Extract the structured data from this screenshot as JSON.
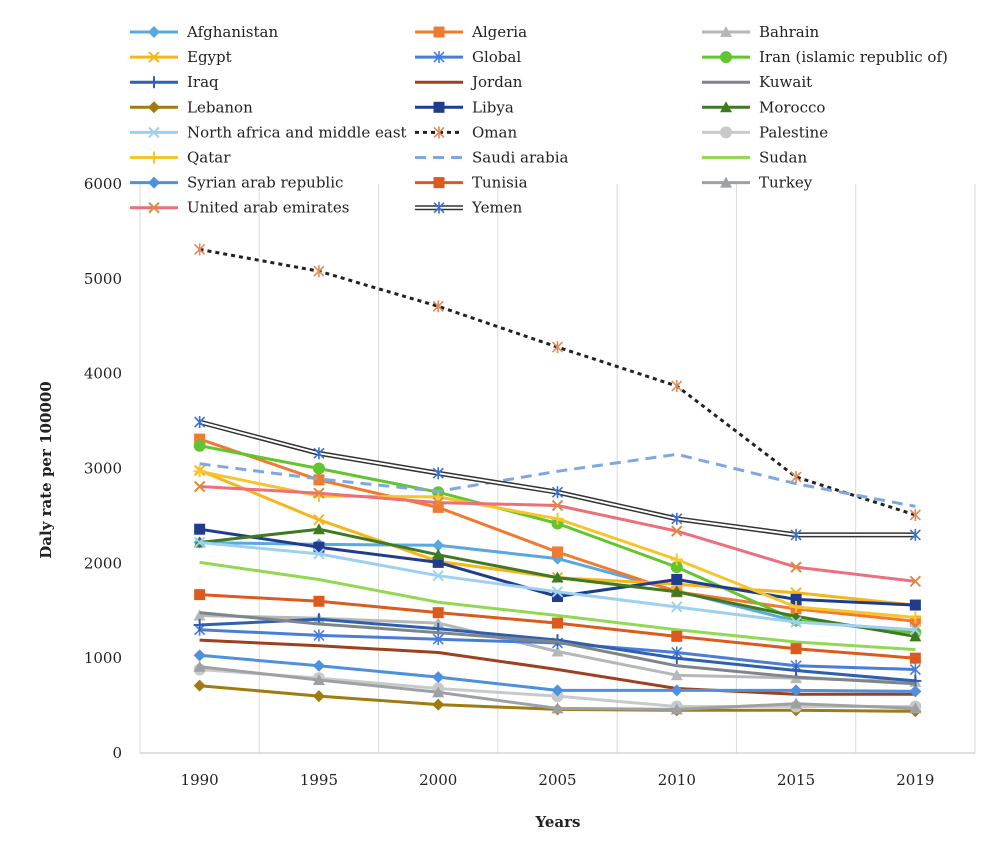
{
  "chart_data": {
    "type": "line",
    "xlabel": "Years",
    "ylabel": "Daly rate per 100000",
    "x": [
      "1990",
      "1995",
      "2000",
      "2005",
      "2010",
      "2015",
      "2019"
    ],
    "ylim": [
      0,
      6000
    ],
    "yticks": [
      0,
      1000,
      2000,
      3000,
      4000,
      5000,
      6000
    ],
    "grid": "vertical",
    "legend_position": "top",
    "series": [
      {
        "name": "Afghanistan",
        "color": "#5aa8e0",
        "marker": "diamond",
        "dash": "solid",
        "values": [
          2220,
          2200,
          2190,
          2050,
          1710,
          1390,
          1290
        ]
      },
      {
        "name": "Algeria",
        "color": "#f07a32",
        "marker": "square",
        "dash": "solid",
        "values": [
          3310,
          2880,
          2590,
          2120,
          1700,
          1520,
          1390
        ]
      },
      {
        "name": "Bahrain",
        "color": "#b5b8b8",
        "marker": "triangle",
        "dash": "solid",
        "values": [
          1450,
          1420,
          1370,
          1070,
          820,
          790,
          750
        ]
      },
      {
        "name": "Egypt",
        "color": "#f5b51d",
        "marker": "x",
        "dash": "solid",
        "values": [
          2980,
          2460,
          2020,
          1850,
          1780,
          1690,
          1560
        ]
      },
      {
        "name": "Global",
        "color": "#4a7ed6",
        "marker": "asterisk",
        "dash": "solid",
        "values": [
          1300,
          1240,
          1200,
          1160,
          1060,
          920,
          880
        ]
      },
      {
        "name": "Iran (islamic republic of)",
        "color": "#62c530",
        "marker": "circle",
        "dash": "solid",
        "values": [
          3240,
          3000,
          2750,
          2420,
          1960,
          1400,
          1270
        ]
      },
      {
        "name": "Iraq",
        "color": "#2e5fb0",
        "marker": "plus",
        "dash": "solid",
        "values": [
          1350,
          1410,
          1310,
          1190,
          1000,
          870,
          760
        ]
      },
      {
        "name": "Jordan",
        "color": "#9e4020",
        "marker": "none",
        "dash": "solid",
        "values": [
          1190,
          1130,
          1060,
          880,
          680,
          620,
          620
        ]
      },
      {
        "name": "Kuwait",
        "color": "#7f8588",
        "marker": "none",
        "dash": "solid",
        "values": [
          1480,
          1360,
          1270,
          1170,
          920,
          800,
          730
        ]
      },
      {
        "name": "Lebanon",
        "color": "#a07b10",
        "marker": "diamond",
        "dash": "solid",
        "values": [
          710,
          600,
          510,
          460,
          450,
          450,
          440
        ]
      },
      {
        "name": "Libya",
        "color": "#1f3d8c",
        "marker": "square",
        "dash": "solid",
        "values": [
          2360,
          2170,
          2010,
          1650,
          1830,
          1620,
          1560
        ]
      },
      {
        "name": "Morocco",
        "color": "#3e7a22",
        "marker": "triangle",
        "dash": "solid",
        "values": [
          2220,
          2360,
          2090,
          1850,
          1700,
          1440,
          1230
        ]
      },
      {
        "name": "North africa and middle east",
        "color": "#9fd0f0",
        "marker": "x",
        "dash": "solid",
        "values": [
          2220,
          2100,
          1870,
          1700,
          1540,
          1380,
          1300
        ]
      },
      {
        "name": "Oman",
        "color": "#222222",
        "marker": "asterisk-orange",
        "dash": "dotted",
        "values": [
          5310,
          5080,
          4710,
          4280,
          3870,
          2910,
          2510
        ]
      },
      {
        "name": "Palestine",
        "color": "#c7cacb",
        "marker": "circle",
        "dash": "solid",
        "values": [
          880,
          790,
          680,
          600,
          490,
          490,
          490
        ]
      },
      {
        "name": "Qatar",
        "color": "#f7c52a",
        "marker": "plus",
        "dash": "solid",
        "values": [
          2970,
          2710,
          2700,
          2470,
          2040,
          1540,
          1430
        ]
      },
      {
        "name": "Saudi arabia",
        "color": "#7fa8e0",
        "marker": "none",
        "dash": "dashed",
        "values": [
          3050,
          2890,
          2760,
          2970,
          3150,
          2840,
          2600
        ]
      },
      {
        "name": "Sudan",
        "color": "#92d852",
        "marker": "none",
        "dash": "solid",
        "values": [
          2010,
          1830,
          1590,
          1450,
          1300,
          1170,
          1090
        ]
      },
      {
        "name": "Syrian arab republic",
        "color": "#4e8fde",
        "marker": "diamond",
        "dash": "solid",
        "values": [
          1030,
          920,
          800,
          660,
          660,
          660,
          650
        ]
      },
      {
        "name": "Tunisia",
        "color": "#dc5a1e",
        "marker": "square",
        "dash": "solid",
        "values": [
          1670,
          1600,
          1480,
          1370,
          1230,
          1100,
          1000
        ]
      },
      {
        "name": "Turkey",
        "color": "#9ea1a3",
        "marker": "triangle",
        "dash": "solid",
        "values": [
          910,
          770,
          640,
          470,
          460,
          520,
          470
        ]
      },
      {
        "name": "United arab emirates",
        "color": "#ec6f7b",
        "marker": "x-orange",
        "dash": "solid",
        "values": [
          2810,
          2740,
          2640,
          2610,
          2340,
          1960,
          1810
        ]
      },
      {
        "name": "Yemen",
        "color": "#333333",
        "marker": "asterisk-blue",
        "dash": "double",
        "values": [
          3490,
          3160,
          2950,
          2750,
          2470,
          2300,
          2300
        ]
      }
    ]
  }
}
